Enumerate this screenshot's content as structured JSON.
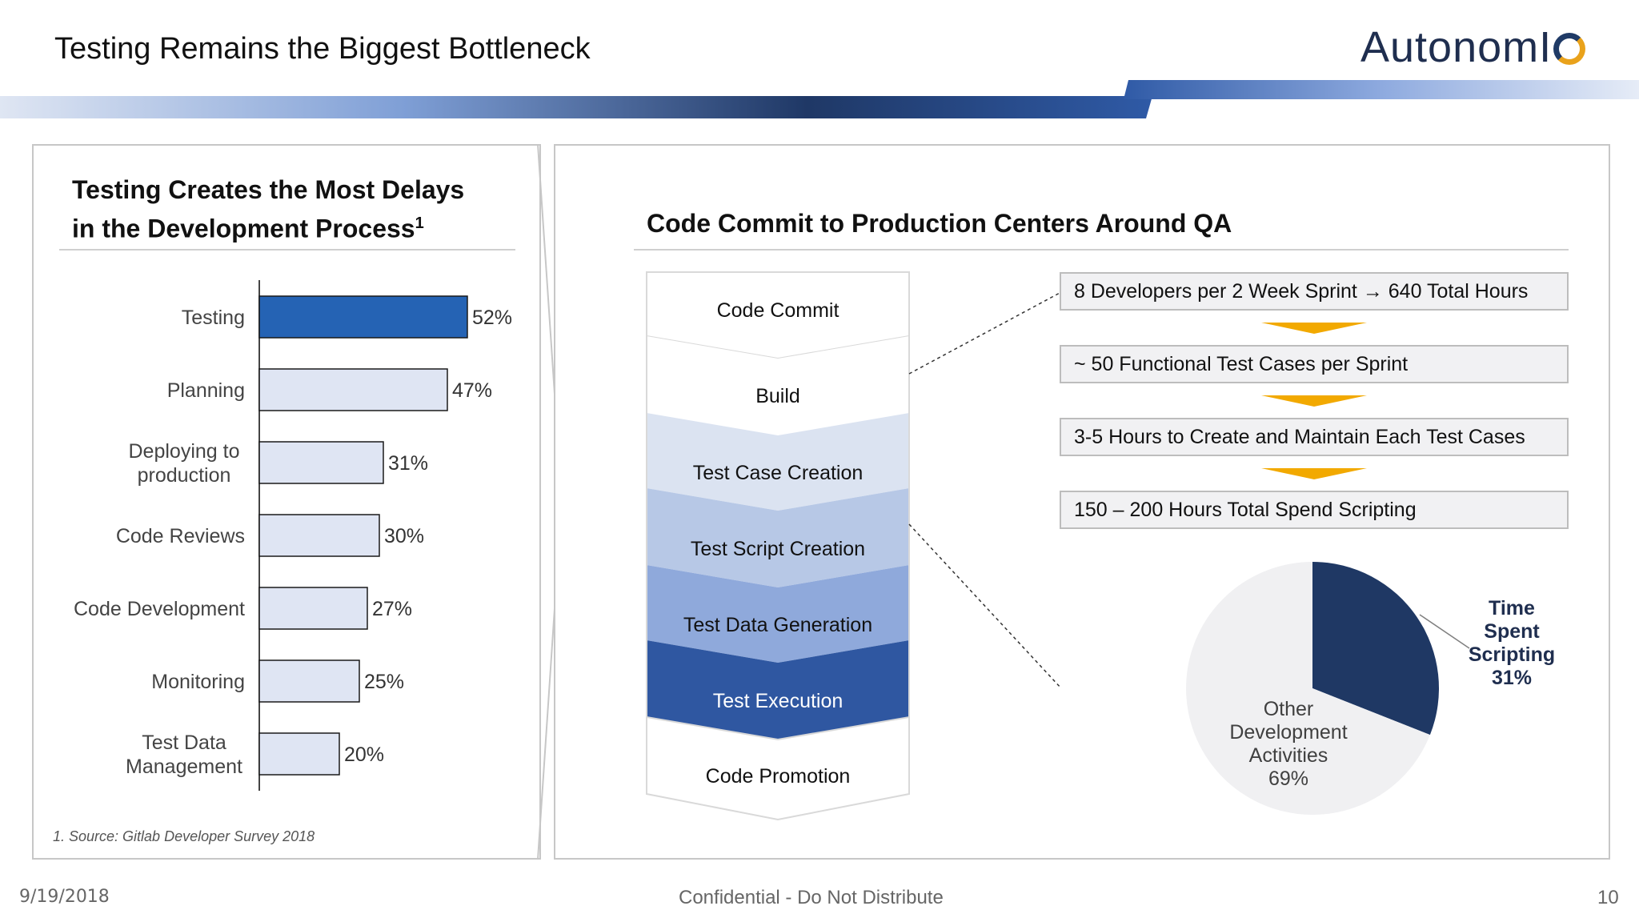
{
  "slide": {
    "title": "Testing Remains the Biggest Bottleneck",
    "logo_text": "AutonomI",
    "footer_date": "9/19/2018",
    "footer_center": "Confidential - Do Not Distribute",
    "page_number": "10"
  },
  "left": {
    "title_line1": "Testing Creates the Most Delays",
    "title_line2": "in the Development Process",
    "title_superscript": "1",
    "footnote": "1. Source: Gitlab Developer Survey 2018"
  },
  "right": {
    "title": "Code Commit to Production Centers Around QA",
    "flow_steps": [
      "Code Commit",
      "Build",
      "Test Case Creation",
      "Test Script Creation",
      "Test Data Generation",
      "Test Execution",
      "Code Promotion"
    ],
    "process_boxes": [
      "8 Developers per 2 Week Sprint → 640 Total Hours",
      "~ 50 Functional Test Cases per Sprint",
      "3-5 Hours to Create and Maintain Each Test Cases",
      "150 – 200 Hours Total Spend Scripting"
    ]
  },
  "colors": {
    "highlight_bar": "#2563b4",
    "normal_bar": "#dfe5f3",
    "arrow": "#f2a900",
    "pie_dark": "#1f3864",
    "pie_light": "#f0f0f2"
  },
  "chart_data": [
    {
      "type": "bar",
      "orientation": "horizontal",
      "title": "Testing Creates the Most Delays in the Development Process",
      "categories": [
        "Testing",
        "Planning",
        "Deploying to production",
        "Code Reviews",
        "Code Development",
        "Monitoring",
        "Test Data Management"
      ],
      "category_lines": [
        [
          "Testing"
        ],
        [
          "Planning"
        ],
        [
          "Deploying to",
          "production"
        ],
        [
          "Code Reviews"
        ],
        [
          "Code Development"
        ],
        [
          "Monitoring"
        ],
        [
          "Test Data",
          "Management"
        ]
      ],
      "values": [
        52,
        47,
        31,
        30,
        27,
        25,
        20
      ],
      "value_labels": [
        "52%",
        "47%",
        "31%",
        "30%",
        "27%",
        "25%",
        "20%"
      ],
      "highlight_index": 0,
      "xlim": [
        0,
        52
      ],
      "grid": false
    },
    {
      "type": "pie",
      "slices": [
        {
          "label_lines": [
            "Time",
            "Spent",
            "Scripting",
            "31%"
          ],
          "value": 31
        },
        {
          "label_lines": [
            "Other",
            "Development",
            "Activities",
            "69%"
          ],
          "value": 69
        }
      ]
    }
  ]
}
